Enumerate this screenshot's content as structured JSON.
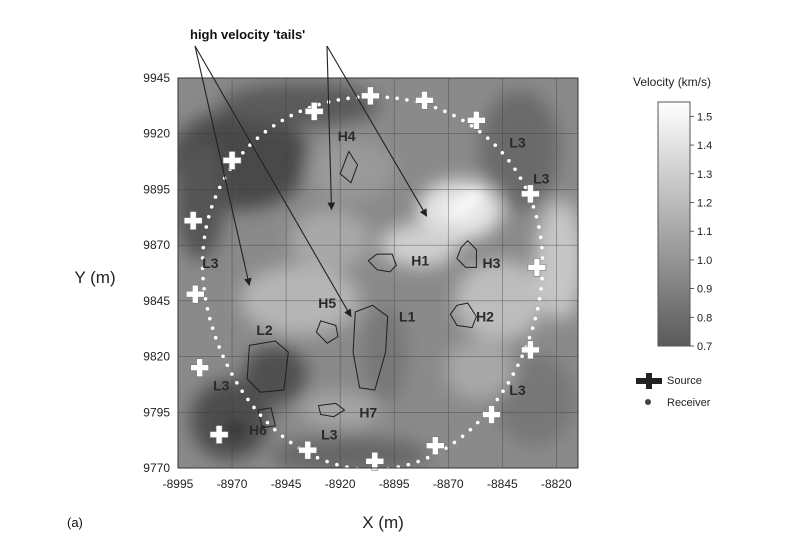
{
  "chart_data": {
    "type": "heatmap",
    "panel_label": "(a)",
    "xlabel": "X (m)",
    "ylabel": "Y (m)",
    "xlim": [
      -8995,
      -8810
    ],
    "ylim": [
      9770,
      9945
    ],
    "x_ticks": [
      -8995,
      -8970,
      -8945,
      -8920,
      -8895,
      -8870,
      -8845,
      -8820
    ],
    "y_ticks": [
      9945,
      9920,
      9895,
      9870,
      9845,
      9820,
      9795,
      9770
    ],
    "grid": true,
    "colorbar": {
      "title": "Velocity (km/s)",
      "range": [
        0.7,
        1.55
      ],
      "ticks": [
        "1.5",
        "1.4",
        "1.3",
        "1.2",
        "1.1",
        "1.0",
        "0.9",
        "0.8",
        "0.7"
      ],
      "colors": [
        "#ffffff",
        "#5a5a5a"
      ]
    },
    "annotation": {
      "text": "high velocity 'tails'",
      "arrow_targets": [
        {
          "x": -8962,
          "y": 9852
        },
        {
          "x": -8915,
          "y": 9838
        },
        {
          "x": -8924,
          "y": 9886
        },
        {
          "x": -8880,
          "y": 9883
        }
      ]
    },
    "regions": [
      {
        "label": "H1",
        "label_at": [
          -8883,
          9863
        ],
        "outline": [
          [
            -8907,
            9863
          ],
          [
            -8903,
            9859
          ],
          [
            -8897,
            9858
          ],
          [
            -8894,
            9861
          ],
          [
            -8896,
            9866
          ],
          [
            -8903,
            9866
          ]
        ]
      },
      {
        "label": "H2",
        "label_at": [
          -8853,
          9838
        ],
        "outline": [
          [
            -8869,
            9839
          ],
          [
            -8866,
            9834
          ],
          [
            -8859,
            9833
          ],
          [
            -8857,
            9838
          ],
          [
            -8861,
            9844
          ],
          [
            -8866,
            9843
          ]
        ]
      },
      {
        "label": "H3",
        "label_at": [
          -8850,
          9862
        ],
        "outline": [
          [
            -8866,
            9864
          ],
          [
            -8864,
            9869
          ],
          [
            -8861,
            9872
          ],
          [
            -8857,
            9868
          ],
          [
            -8857,
            9860
          ],
          [
            -8862,
            9860
          ]
        ]
      },
      {
        "label": "H4",
        "label_at": [
          -8917,
          9919
        ],
        "outline": [
          [
            -8920,
            9902
          ],
          [
            -8916,
            9912
          ],
          [
            -8912,
            9906
          ],
          [
            -8915,
            9898
          ]
        ]
      },
      {
        "label": "H5",
        "label_at": [
          -8926,
          9844
        ],
        "outline": [
          [
            -8929,
            9836
          ],
          [
            -8922,
            9834
          ],
          [
            -8921,
            9829
          ],
          [
            -8926,
            9826
          ],
          [
            -8931,
            9831
          ]
        ]
      },
      {
        "label": "H6",
        "label_at": [
          -8958,
          9787
        ],
        "outline": [
          [
            -8958,
            9796
          ],
          [
            -8952,
            9797
          ],
          [
            -8950,
            9789
          ],
          [
            -8956,
            9788
          ]
        ]
      },
      {
        "label": "H7",
        "label_at": [
          -8907,
          9795
        ],
        "outline": [
          [
            -8930,
            9798
          ],
          [
            -8922,
            9799
          ],
          [
            -8918,
            9796
          ],
          [
            -8923,
            9793
          ],
          [
            -8929,
            9794
          ]
        ]
      },
      {
        "label": "L1",
        "label_at": [
          -8889,
          9838
        ],
        "outline": [
          [
            -8913,
            9840
          ],
          [
            -8905,
            9843
          ],
          [
            -8898,
            9838
          ],
          [
            -8899,
            9822
          ],
          [
            -8904,
            9805
          ],
          [
            -8911,
            9806
          ],
          [
            -8914,
            9822
          ]
        ]
      },
      {
        "label": "L2",
        "label_at": [
          -8955,
          9832
        ],
        "outline": [
          [
            -8962,
            9825
          ],
          [
            -8950,
            9827
          ],
          [
            -8944,
            9822
          ],
          [
            -8946,
            9805
          ],
          [
            -8957,
            9804
          ],
          [
            -8963,
            9810
          ]
        ]
      },
      {
        "label": "L3",
        "label_at": [
          -8980,
          9862
        ]
      },
      {
        "label": "L3",
        "label_at": [
          -8975,
          9807
        ]
      },
      {
        "label": "L3",
        "label_at": [
          -8925,
          9785
        ]
      },
      {
        "label": "L3",
        "label_at": [
          -8838,
          9805
        ]
      },
      {
        "label": "L3",
        "label_at": [
          -8838,
          9916
        ]
      },
      {
        "label": "L3",
        "label_at": [
          -8827,
          9900
        ]
      }
    ],
    "sources": [
      {
        "x": -8906,
        "y": 9937
      },
      {
        "x": -8881,
        "y": 9935
      },
      {
        "x": -8857,
        "y": 9926
      },
      {
        "x": -8832,
        "y": 9893
      },
      {
        "x": -8829,
        "y": 9860
      },
      {
        "x": -8832,
        "y": 9823
      },
      {
        "x": -8850,
        "y": 9794
      },
      {
        "x": -8876,
        "y": 9780
      },
      {
        "x": -8904,
        "y": 9773
      },
      {
        "x": -8935,
        "y": 9778
      },
      {
        "x": -8976,
        "y": 9785
      },
      {
        "x": -8985,
        "y": 9815
      },
      {
        "x": -8987,
        "y": 9848
      },
      {
        "x": -8988,
        "y": 9881
      },
      {
        "x": -8970,
        "y": 9908
      },
      {
        "x": -8932,
        "y": 9930
      }
    ],
    "receiver_ring": {
      "center": [
        -8905,
        9855
      ],
      "radius_x": 80,
      "radius_y": 82
    },
    "legend": [
      {
        "symbol": "source",
        "label": "Source"
      },
      {
        "symbol": "receiver",
        "label": "Receiver"
      }
    ]
  }
}
